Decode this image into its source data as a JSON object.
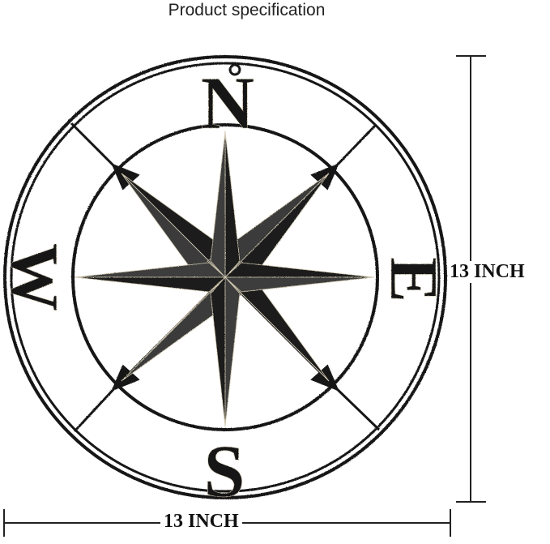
{
  "header": {
    "title": "Product specification"
  },
  "dimensions": {
    "width_label": "13 INCH",
    "height_label": "13 INCH"
  },
  "compass": {
    "north": "N",
    "east": "E",
    "south": "S",
    "west": "W"
  },
  "colors": {
    "metal": "#161616",
    "highlight": "#cfc7b0",
    "background": "#ffffff"
  }
}
